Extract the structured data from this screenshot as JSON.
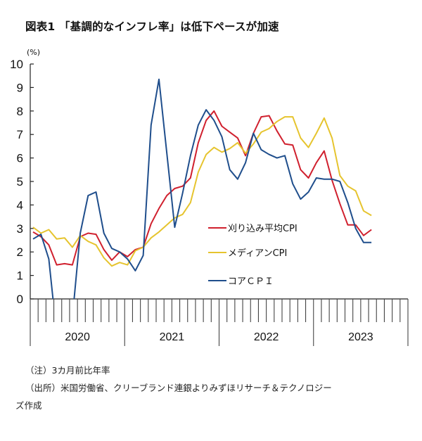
{
  "title": "図表1 「基調的なインフレ率」は低下ペースが加速",
  "notes": {
    "note": "（注）3カ月前比年率",
    "source_line1": "（出所）米国労働省、クリーブランド連銀よりみずほリサーチ＆テクノロジー",
    "source_line2": "ズ作成"
  },
  "chart_data": {
    "type": "line",
    "title": "「基調的なインフレ率」は低下ペースが加速",
    "xlabel": "",
    "ylabel": "(%)",
    "ylim": [
      0,
      10
    ],
    "yticks": [
      "0",
      "1",
      "2",
      "3",
      "4",
      "5",
      "6",
      "7",
      "8",
      "9",
      "10"
    ],
    "year_labels": [
      "2020",
      "2021",
      "2022",
      "2023"
    ],
    "x_frequency": "monthly",
    "x_start": "2020-01",
    "x_end": "2023-08",
    "grid": false,
    "legend_position": "center-right",
    "x": [
      "2020-01",
      "2020-02",
      "2020-03",
      "2020-04",
      "2020-05",
      "2020-06",
      "2020-07",
      "2020-08",
      "2020-09",
      "2020-10",
      "2020-11",
      "2020-12",
      "2021-01",
      "2021-02",
      "2021-03",
      "2021-04",
      "2021-05",
      "2021-06",
      "2021-07",
      "2021-08",
      "2021-09",
      "2021-10",
      "2021-11",
      "2021-12",
      "2022-01",
      "2022-02",
      "2022-03",
      "2022-04",
      "2022-05",
      "2022-06",
      "2022-07",
      "2022-08",
      "2022-09",
      "2022-10",
      "2022-11",
      "2022-12",
      "2023-01",
      "2023-02",
      "2023-03",
      "2023-04",
      "2023-05",
      "2023-06",
      "2023-07",
      "2023-08"
    ],
    "series": [
      {
        "name": "刈り込み平均CPI",
        "color": "#d0202e",
        "values": [
          2.85,
          2.65,
          2.3,
          1.45,
          1.5,
          1.45,
          2.65,
          2.8,
          2.75,
          2.1,
          1.65,
          2.0,
          1.8,
          2.1,
          2.2,
          3.2,
          3.85,
          4.4,
          4.7,
          4.8,
          5.15,
          6.65,
          7.6,
          8.0,
          7.35,
          7.1,
          6.85,
          6.1,
          7.05,
          7.75,
          7.8,
          7.15,
          6.6,
          6.55,
          5.5,
          5.15,
          5.8,
          6.3,
          5.05,
          4.05,
          3.15,
          3.15,
          2.7,
          2.95
        ]
      },
      {
        "name": "メディアンCPI",
        "color": "#e6c42e",
        "values": [
          3.05,
          2.8,
          2.95,
          2.55,
          2.6,
          2.2,
          2.7,
          2.45,
          2.3,
          1.75,
          1.4,
          1.55,
          1.45,
          2.05,
          2.2,
          2.6,
          2.85,
          3.15,
          3.45,
          3.6,
          4.1,
          5.4,
          6.15,
          6.45,
          6.25,
          6.4,
          6.65,
          6.2,
          6.6,
          7.1,
          7.25,
          7.55,
          7.75,
          7.75,
          6.85,
          6.45,
          7.05,
          7.7,
          6.85,
          5.25,
          4.8,
          4.6,
          3.75,
          3.55
        ]
      },
      {
        "name": "コアＣＰＩ",
        "color": "#1f4e8c",
        "values": [
          2.55,
          2.75,
          1.7,
          -1.5,
          -1.0,
          -0.8,
          2.8,
          4.4,
          4.55,
          2.8,
          2.15,
          2.0,
          1.7,
          1.2,
          1.85,
          7.4,
          9.35,
          6.2,
          3.05,
          4.5,
          6.1,
          7.4,
          8.05,
          7.6,
          6.9,
          5.5,
          5.1,
          5.8,
          7.05,
          6.35,
          6.15,
          6.0,
          6.1,
          4.9,
          4.25,
          4.55,
          5.15,
          5.1,
          5.1,
          5.0,
          4.1,
          3.0,
          2.4,
          2.4
        ]
      }
    ]
  },
  "legend": {
    "items": [
      "刈り込み平均CPI",
      "メディアンCPI",
      "コアＣＰＩ"
    ]
  }
}
